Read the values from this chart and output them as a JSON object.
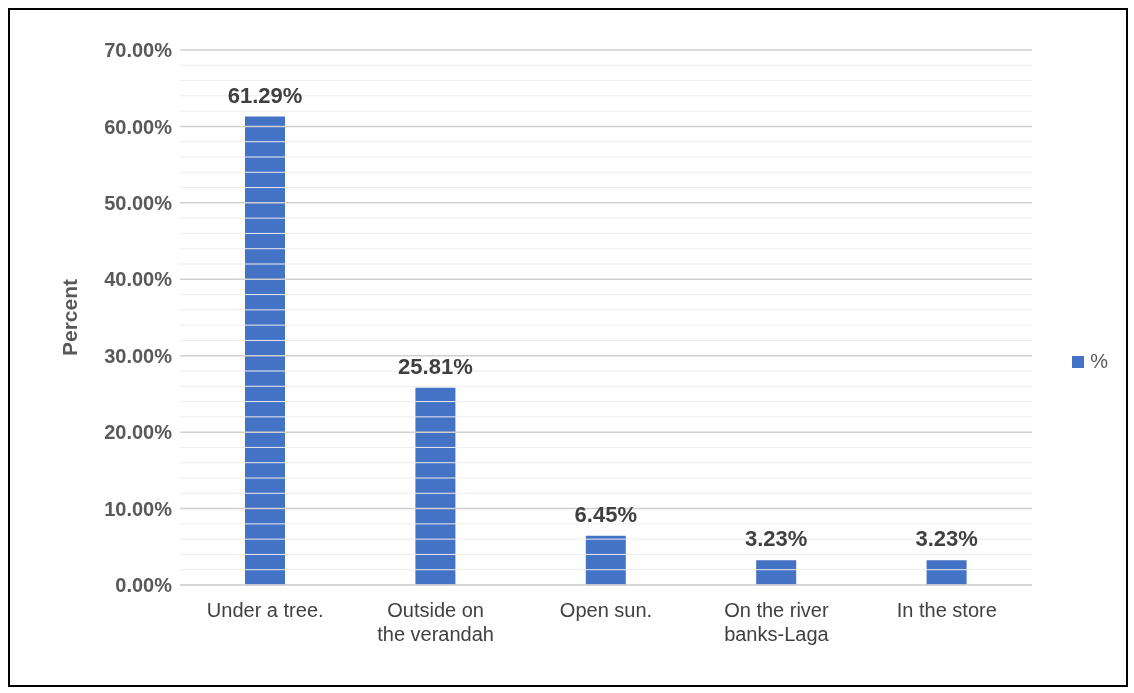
{
  "chart_data": {
    "type": "bar",
    "ylabel": "Percent",
    "categories": [
      "Under a tree.",
      "Outside on the verandah",
      "Open sun.",
      "On the river banks-Laga",
      "In the store"
    ],
    "series": [
      {
        "name": "%",
        "color": "#4472c4",
        "values": [
          61.29,
          25.81,
          6.45,
          3.23,
          3.23
        ],
        "value_labels": [
          "61.29%",
          "25.81%",
          "6.45%",
          "3.23%",
          "3.23%"
        ]
      }
    ],
    "ylim": [
      0,
      70
    ],
    "yticks": [
      {
        "value": 0,
        "label": "0.00%"
      },
      {
        "value": 2,
        "label": null
      },
      {
        "value": 4,
        "label": null
      },
      {
        "value": 6,
        "label": null
      },
      {
        "value": 8,
        "label": null
      },
      {
        "value": 10,
        "label": "10.00%"
      },
      {
        "value": 12,
        "label": null
      },
      {
        "value": 14,
        "label": null
      },
      {
        "value": 16,
        "label": null
      },
      {
        "value": 18,
        "label": null
      },
      {
        "value": 20,
        "label": "20.00%"
      },
      {
        "value": 22,
        "label": null
      },
      {
        "value": 24,
        "label": null
      },
      {
        "value": 26,
        "label": null
      },
      {
        "value": 28,
        "label": null
      },
      {
        "value": 30,
        "label": "30.00%"
      },
      {
        "value": 32,
        "label": null
      },
      {
        "value": 34,
        "label": null
      },
      {
        "value": 36,
        "label": null
      },
      {
        "value": 38,
        "label": null
      },
      {
        "value": 40,
        "label": "40.00%"
      },
      {
        "value": 42,
        "label": null
      },
      {
        "value": 44,
        "label": null
      },
      {
        "value": 46,
        "label": null
      },
      {
        "value": 48,
        "label": null
      },
      {
        "value": 50,
        "label": "50.00%"
      },
      {
        "value": 52,
        "label": null
      },
      {
        "value": 54,
        "label": null
      },
      {
        "value": 56,
        "label": null
      },
      {
        "value": 58,
        "label": null
      },
      {
        "value": 60,
        "label": "60.00%"
      },
      {
        "value": 62,
        "label": null
      },
      {
        "value": 64,
        "label": null
      },
      {
        "value": 66,
        "label": null
      },
      {
        "value": 68,
        "label": null
      },
      {
        "value": 70,
        "label": "70.00%"
      }
    ],
    "grid": "y",
    "legend": "right"
  }
}
